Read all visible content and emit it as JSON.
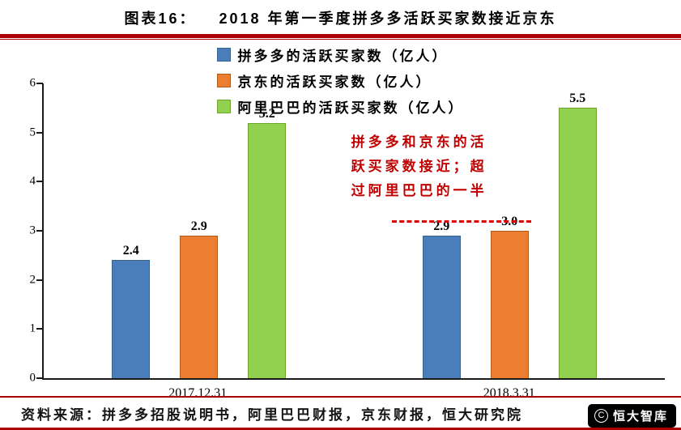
{
  "header": {
    "figure_label": "图表16：",
    "title": "2018 年第一季度拼多多活跃买家数接近京东"
  },
  "chart_data": {
    "type": "bar",
    "title": "2018 年第一季度拼多多活跃买家数接近京东",
    "categories": [
      "2017.12.31",
      "2018.3.31"
    ],
    "series": [
      {
        "name": "拼多多的活跃买家数（亿人）",
        "values": [
          2.4,
          2.9
        ],
        "color": "#4A7EBB",
        "border": "#38618F"
      },
      {
        "name": "京东的活跃买家数（亿人）",
        "values": [
          2.9,
          3.0
        ],
        "color": "#ED7D31",
        "border": "#AE5A1B"
      },
      {
        "name": "阿里巴巴的活跃买家数（亿人）",
        "values": [
          5.2,
          5.5
        ],
        "color": "#92D050",
        "border": "#6FA22E"
      }
    ],
    "ylim": [
      0,
      6
    ],
    "yticks": [
      0,
      1,
      2,
      3,
      4,
      5,
      6
    ],
    "grid": false,
    "legend_position": "top-center",
    "annotation": {
      "text_lines": [
        "拼多多和京东的活",
        "跃买家数接近；超",
        "过阿里巴巴的一半"
      ],
      "color": "#C00000",
      "reference_line_y": 3.0
    }
  },
  "footer": {
    "source": "资料来源：拼多多招股说明书，阿里巴巴财报，京东财报，恒大研究院",
    "logo_text": "恒大智库",
    "logo_icon": "C"
  },
  "colors": {
    "rule_red": "#AC0101",
    "annotation_red": "#C00000",
    "reference_line_red": "#E00000",
    "bar_blue": "#4A7EBB",
    "bar_orange": "#ED7D31",
    "bar_green": "#92D050"
  }
}
